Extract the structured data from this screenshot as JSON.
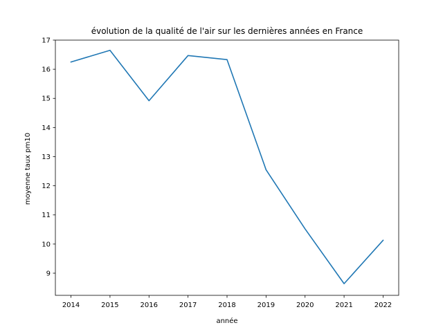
{
  "chart_data": {
    "type": "line",
    "title": "évolution de la qualité de l'air sur les dernières années en France",
    "xlabel": "année",
    "ylabel": "moyenne taux pm10",
    "x": [
      2014,
      2015,
      2016,
      2017,
      2018,
      2019,
      2020,
      2021,
      2022
    ],
    "series": [
      {
        "values": [
          16.25,
          16.65,
          14.92,
          16.47,
          16.33,
          12.55,
          10.52,
          8.64,
          10.13
        ],
        "color": "#1f77b4"
      }
    ],
    "xlim": [
      2013.6,
      2022.4
    ],
    "ylim": [
      8.24,
      17.0
    ],
    "xticks": [
      "2014",
      "2015",
      "2016",
      "2017",
      "2018",
      "2019",
      "2020",
      "2021",
      "2022"
    ],
    "yticks": [
      "9",
      "10",
      "11",
      "12",
      "13",
      "14",
      "15",
      "16",
      "17"
    ],
    "grid": false,
    "legend": "none"
  }
}
